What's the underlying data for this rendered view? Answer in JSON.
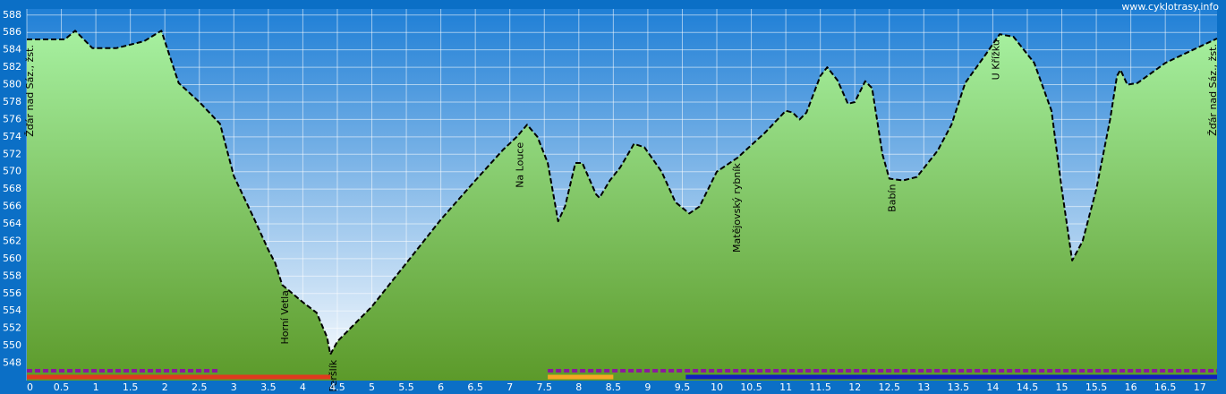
{
  "chart_data": {
    "type": "area",
    "watermark": "www.cyklotrasy.info",
    "x": [
      0,
      0.55,
      0.7,
      0.95,
      1.3,
      1.7,
      1.95,
      2.2,
      2.5,
      2.8,
      3.0,
      3.3,
      3.5,
      3.6,
      3.7,
      4.0,
      4.2,
      4.35,
      4.4,
      4.5,
      5.0,
      5.5,
      6.0,
      6.5,
      6.9,
      7.1,
      7.25,
      7.4,
      7.55,
      7.7,
      7.8,
      7.95,
      8.05,
      8.25,
      8.3,
      8.45,
      8.6,
      8.8,
      8.95,
      9.2,
      9.4,
      9.6,
      9.75,
      10.0,
      10.3,
      10.7,
      11.0,
      11.1,
      11.2,
      11.3,
      11.5,
      11.6,
      11.75,
      11.9,
      12.0,
      12.15,
      12.25,
      12.4,
      12.5,
      12.7,
      12.9,
      13.2,
      13.4,
      13.6,
      13.9,
      14.1,
      14.3,
      14.6,
      14.85,
      15.0,
      15.15,
      15.3,
      15.5,
      15.7,
      15.8,
      15.85,
      15.95,
      16.1,
      16.5,
      16.9,
      17.25
    ],
    "values": [
      585.2,
      585.2,
      586.2,
      584.2,
      584.2,
      585,
      586.2,
      580.2,
      578,
      575.5,
      569.5,
      564.5,
      561,
      559.5,
      557,
      555,
      553.8,
      551,
      549,
      550.5,
      554.5,
      559.5,
      564.5,
      569,
      572.5,
      574,
      575.4,
      574,
      571,
      564.3,
      566,
      571,
      571,
      567.4,
      567,
      569,
      570.5,
      573.2,
      572.8,
      570,
      566.5,
      565.2,
      566,
      570,
      571.6,
      574.5,
      577,
      576.8,
      576,
      576.8,
      581,
      582,
      580.5,
      577.8,
      578,
      580.4,
      579.6,
      572,
      569.2,
      569,
      569.4,
      572.4,
      575.4,
      580.2,
      583.5,
      585.8,
      585.5,
      582.5,
      577,
      568,
      559.8,
      562,
      568,
      576,
      581,
      581.7,
      580,
      580.2,
      582.5,
      584,
      585.3
    ],
    "xlim": [
      0,
      17.25
    ],
    "ylim": [
      546,
      588.7
    ],
    "xticks": [
      0,
      0.5,
      1,
      1.5,
      2,
      2.5,
      3,
      3.5,
      4,
      4.5,
      5,
      5.5,
      6,
      6.5,
      7,
      7.5,
      8,
      8.5,
      9,
      9.5,
      10,
      10.5,
      11,
      11.5,
      12,
      12.5,
      13,
      13.5,
      14,
      14.5,
      15,
      15.5,
      16,
      16.5,
      17
    ],
    "yticks": [
      548,
      550,
      552,
      554,
      556,
      558,
      560,
      562,
      564,
      566,
      568,
      570,
      572,
      574,
      576,
      578,
      580,
      582,
      584,
      586,
      588
    ],
    "grid": true,
    "waypoints": [
      {
        "name": "Žďár nad Sáz., žst.",
        "x": 0.05
      },
      {
        "name": "Horní Vetla",
        "x": 3.75
      },
      {
        "name": "Peršlík",
        "x": 4.45
      },
      {
        "name": "Na Louce",
        "x": 7.15
      },
      {
        "name": "Matějovský rybník",
        "x": 10.3
      },
      {
        "name": "Babín",
        "x": 12.55
      },
      {
        "name": "U Křížku",
        "x": 14.05
      },
      {
        "name": "Žďár nad Sáz., žst.",
        "x": 17.2
      }
    ],
    "bands": [
      {
        "color": "#8b1a9c",
        "style": "dotted",
        "from": 0,
        "to": 2.8
      },
      {
        "color": "#8b1a9c",
        "style": "dotted",
        "from": 7.55,
        "to": 17.25
      },
      {
        "color": "#e03a1e",
        "style": "solid",
        "from": 0,
        "to": 4.4
      },
      {
        "color": "#f5a623",
        "style": "solid",
        "from": 7.55,
        "to": 8.5
      },
      {
        "color": "#1020c0",
        "style": "solid",
        "from": 9.55,
        "to": 17.25
      }
    ]
  }
}
